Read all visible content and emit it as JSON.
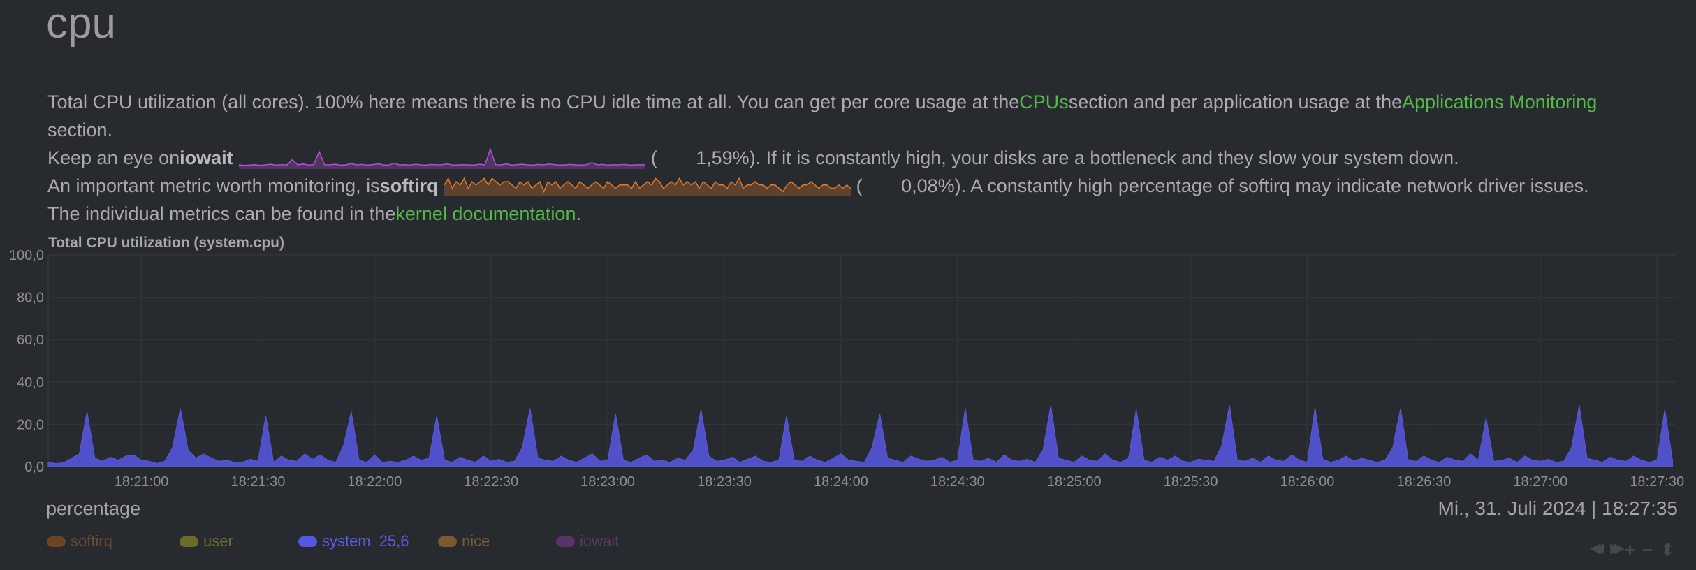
{
  "section_title": "cpu",
  "description": {
    "line1_a": "Total CPU utilization (all cores). 100% here means there is no CPU idle time at all. You can get per core usage at the ",
    "link_cpus": "CPUs",
    "line1_b": " section and per application usage at the ",
    "link_apps": "Applications Monitoring",
    "line2": "section.",
    "line3_a": "Keep an eye on ",
    "iowait_label": "iowait",
    "iowait_open": "(",
    "iowait_value": "1,59%",
    "line3_b": "). If it is constantly high, your disks are a bottleneck and they slow your system down.",
    "line4_a": "An important metric worth monitoring, is ",
    "softirq_label": "softirq",
    "softirq_open": "(",
    "softirq_value": "0,08%",
    "line4_b": "). A constantly high percentage of softirq may indicate network driver issues.",
    "line5_a": "The individual metrics can be found in the ",
    "link_kernel": "kernel documentation",
    "line5_b": "."
  },
  "sparklines": {
    "iowait": {
      "color": "#b24fd6",
      "values": [
        1.2,
        1,
        1.1,
        1.3,
        1,
        1.2,
        1.5,
        1.1,
        1.3,
        1.2,
        3.5,
        1.2,
        1.6,
        1.1,
        1.4,
        7,
        1.3,
        1.2,
        1.5,
        1.1,
        1.2,
        1.8,
        1.2,
        1.4,
        1.1,
        1.3,
        1.7,
        1.2,
        1.1,
        1.9,
        1.2,
        1.3,
        1.1,
        1.5,
        1.2,
        1.1,
        1.4,
        1.2,
        1.3,
        1.6,
        1.1,
        1.2,
        1.3,
        1.2,
        1.1,
        1.5,
        1.2,
        8,
        1.3,
        1.2,
        1.6,
        1.1,
        1.3,
        1.5,
        1.2,
        1.1,
        1.4,
        1.2,
        1.6,
        1.3,
        1.1,
        1.2,
        1.4,
        1.2,
        1.1,
        1.3,
        2.2,
        1.2,
        1.4,
        1.1,
        1.3,
        1.2,
        1.4,
        1.1,
        1.2,
        1.3,
        1.2
      ]
    },
    "softirq": {
      "color": "#e07a2a",
      "values": [
        3,
        5,
        2,
        4,
        3,
        5,
        2,
        4,
        3,
        4,
        5,
        3,
        5,
        4,
        3,
        4,
        4,
        3,
        2,
        4,
        3,
        4,
        2,
        3,
        4,
        1,
        4,
        3,
        4,
        2,
        3,
        4,
        3,
        2,
        4,
        3,
        2,
        3,
        4,
        3,
        2,
        4,
        3,
        2,
        3,
        3,
        3,
        2,
        4,
        2,
        3,
        4,
        3,
        5,
        4,
        2,
        3,
        4,
        3,
        5,
        3,
        4,
        3,
        4,
        2,
        4,
        3,
        2,
        4,
        3,
        3,
        2,
        4,
        3,
        5,
        2,
        3,
        3,
        4,
        3,
        3,
        2,
        3,
        3,
        2,
        1,
        3,
        4,
        3,
        2,
        3,
        3,
        4,
        3,
        2,
        3,
        3,
        2,
        2,
        3,
        2,
        3,
        2
      ]
    }
  },
  "chart_data": {
    "type": "area",
    "title": "Total CPU utilization (system.cpu)",
    "ylabel": "percentage",
    "ylim": [
      0,
      100
    ],
    "yticks": [
      "0,0",
      "20,0",
      "40,0",
      "60,0",
      "80,0",
      "100,0"
    ],
    "ytick_values": [
      0,
      20,
      40,
      60,
      80,
      100
    ],
    "x_start": "18:20:36",
    "x_step_seconds": 2,
    "x_span_seconds": 419,
    "xticks": [
      "18:21:00",
      "18:21:30",
      "18:22:00",
      "18:22:30",
      "18:23:00",
      "18:23:30",
      "18:24:00",
      "18:24:30",
      "18:25:00",
      "18:25:30",
      "18:26:00",
      "18:26:30",
      "18:27:00",
      "18:27:30"
    ],
    "xtick_seconds": [
      24,
      54,
      84,
      114,
      144,
      174,
      204,
      234,
      264,
      294,
      324,
      354,
      384,
      414
    ],
    "grid": true,
    "series": [
      {
        "name": "system",
        "color": "#5050c8",
        "values": [
          2,
          1.5,
          1.8,
          4,
          6,
          26,
          4,
          2.5,
          4.5,
          3,
          5,
          5.5,
          3,
          2.5,
          1.5,
          2.5,
          9,
          27.5,
          8,
          4,
          6,
          4,
          2.5,
          3,
          2,
          2,
          3.5,
          2.5,
          24,
          2,
          5,
          3,
          2.5,
          6,
          3.5,
          5.5,
          3,
          2,
          10,
          26,
          3,
          2,
          5.5,
          2,
          2.5,
          2,
          3,
          5,
          3,
          4,
          24,
          3,
          2,
          4.5,
          3,
          2,
          5,
          2.5,
          3.5,
          2,
          2.5,
          9,
          27.5,
          4,
          3,
          2.5,
          5,
          3,
          2,
          4,
          6,
          2.5,
          3,
          25,
          3,
          2,
          4,
          5.5,
          2.5,
          3,
          2,
          4,
          3,
          8,
          27,
          5,
          2.5,
          3,
          4.5,
          2,
          3.5,
          5,
          2.5,
          2,
          3,
          24,
          3,
          2.5,
          5,
          3,
          2,
          4,
          6,
          3,
          2.5,
          2,
          9,
          25,
          4,
          3,
          2,
          5,
          3.5,
          2.5,
          3,
          4.5,
          2,
          3,
          27.5,
          3,
          2.5,
          4,
          2,
          5.5,
          3,
          2.5,
          3.5,
          2,
          8,
          29,
          4,
          3,
          2,
          5,
          3,
          2.5,
          6,
          3,
          2,
          4,
          27,
          3,
          2,
          4.5,
          3,
          5,
          2.5,
          2,
          3.5,
          3,
          2.5,
          10,
          29,
          3,
          2.5,
          4,
          2,
          5,
          3,
          2.5,
          5.5,
          3,
          2,
          28,
          3.5,
          2,
          3,
          5,
          2.5,
          4,
          3,
          2,
          3,
          9,
          27.5,
          3,
          2.5,
          5,
          3,
          2,
          4.5,
          3,
          2.5,
          6,
          3,
          23,
          2.5,
          3,
          4,
          2,
          5,
          3,
          2.5,
          3.5,
          2,
          2.5,
          9,
          29,
          4,
          3,
          2,
          4.5,
          3,
          2.5,
          5,
          3,
          2,
          3,
          27,
          3
        ]
      },
      {
        "name": "softirq",
        "color": "#6b4426",
        "values": []
      },
      {
        "name": "user",
        "color": "#6b6b2a",
        "values": []
      },
      {
        "name": "nice",
        "color": "#7a5a2a",
        "values": []
      },
      {
        "name": "iowait",
        "color": "#5a3466",
        "values": []
      }
    ]
  },
  "footer": {
    "units": "percentage",
    "datetime": "Mi., 31. Juli 2024 | 18:27:35"
  },
  "legend": [
    {
      "name": "softirq",
      "value": "",
      "color": "#6b4426",
      "text_color": "#6b4a2e"
    },
    {
      "name": "user",
      "value": "",
      "color": "#6b6b2a",
      "text_color": "#6c6c2e"
    },
    {
      "name": "system",
      "value": "25,6",
      "color": "#5757e6",
      "text_color": "#5c5ce6"
    },
    {
      "name": "nice",
      "value": "",
      "color": "#7a5a2a",
      "text_color": "#7a5c30"
    },
    {
      "name": "iowait",
      "value": "",
      "color": "#5a3466",
      "text_color": "#5c3868"
    }
  ],
  "controls": {
    "pan_left": "◀◀",
    "pan_right": "▶▶",
    "zoom_in": "+",
    "zoom_out": "−",
    "resize": "⬍"
  }
}
